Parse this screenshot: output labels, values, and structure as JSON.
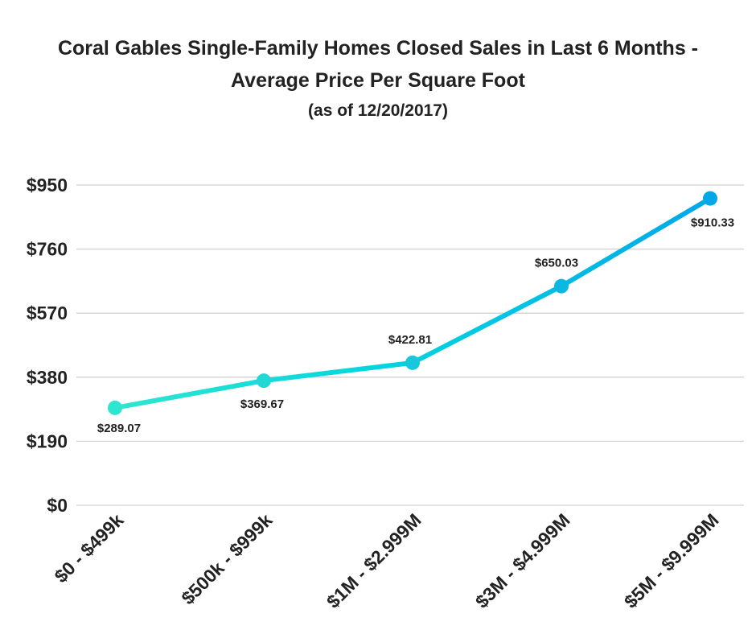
{
  "chart_data": {
    "type": "line",
    "title_line1": "Coral Gables Single-Family Homes Closed Sales in Last 6 Months -",
    "title_line2": "Average Price Per Square Foot",
    "subtitle": "(as of 12/20/2017)",
    "xlabel": "",
    "ylabel": "",
    "categories": [
      "$0 - $499k",
      "$500k - $999k",
      "$1M - $2.999M",
      "$3M - $4.999M",
      "$5M - $9.999M"
    ],
    "values": [
      289.07,
      369.67,
      422.81,
      650.03,
      910.33
    ],
    "data_labels": [
      "$289.07",
      "$369.67",
      "$422.81",
      "$650.03",
      "$910.33"
    ],
    "yticks": [
      0,
      190,
      380,
      570,
      760,
      950
    ],
    "ytick_labels": [
      "$0",
      "$190",
      "$380",
      "$570",
      "$760",
      "$950"
    ],
    "ylim": [
      0,
      950
    ],
    "grid": true,
    "colors": {
      "start": "#2EE6D0",
      "mid": "#00D2E0",
      "end": "#00A8E8",
      "grid": "#d0d0d0",
      "text": "#222222"
    }
  }
}
